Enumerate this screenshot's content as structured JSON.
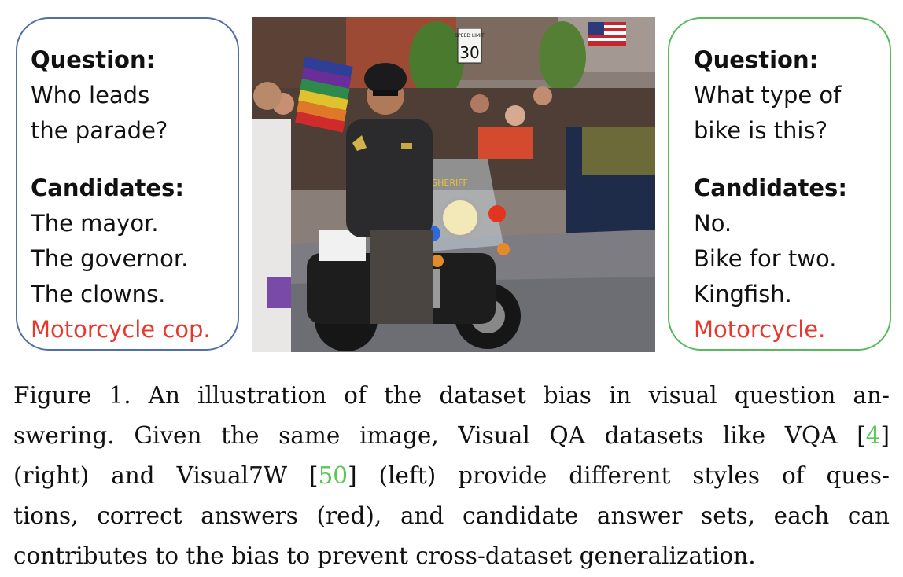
{
  "left_box": {
    "question_heading": "Question:",
    "question_lines": [
      "Who leads",
      "the parade?"
    ],
    "candidates_heading": "Candidates:",
    "candidates": [
      "The mayor.",
      "The governor.",
      "The clowns."
    ],
    "answer": "Motorcycle cop."
  },
  "right_box": {
    "question_heading": "Question:",
    "question_lines": [
      "What type of",
      "bike is this?"
    ],
    "candidates_heading": "Candidates:",
    "candidates": [
      "No.",
      "Bike for two.",
      "Kingfish."
    ],
    "answer": "Motorcycle."
  },
  "photo": {
    "sign_speed_top": "SPEED LIMIT",
    "sign_speed_num": "30",
    "windshield_text": "SHERIFF"
  },
  "caption": {
    "l1": "Figure 1. An illustration of the dataset bias in visual question an-",
    "l2a": "swering. Given the same image, Visual QA datasets like VQA [",
    "cite1": "4",
    "l2b": "]",
    "l3a": "(right) and Visual7W [",
    "cite2": "50",
    "l3b": "] (left) provide different styles of ques-",
    "l4": "tions, correct answers (red), and candidate answer sets, each can",
    "l5": "contributes to the bias to prevent cross-dataset generalization."
  },
  "colors": {
    "left_border": "#5170a8",
    "right_border": "#5cb85c",
    "answer_red": "#e8382e",
    "citation_green": "#55c855"
  }
}
